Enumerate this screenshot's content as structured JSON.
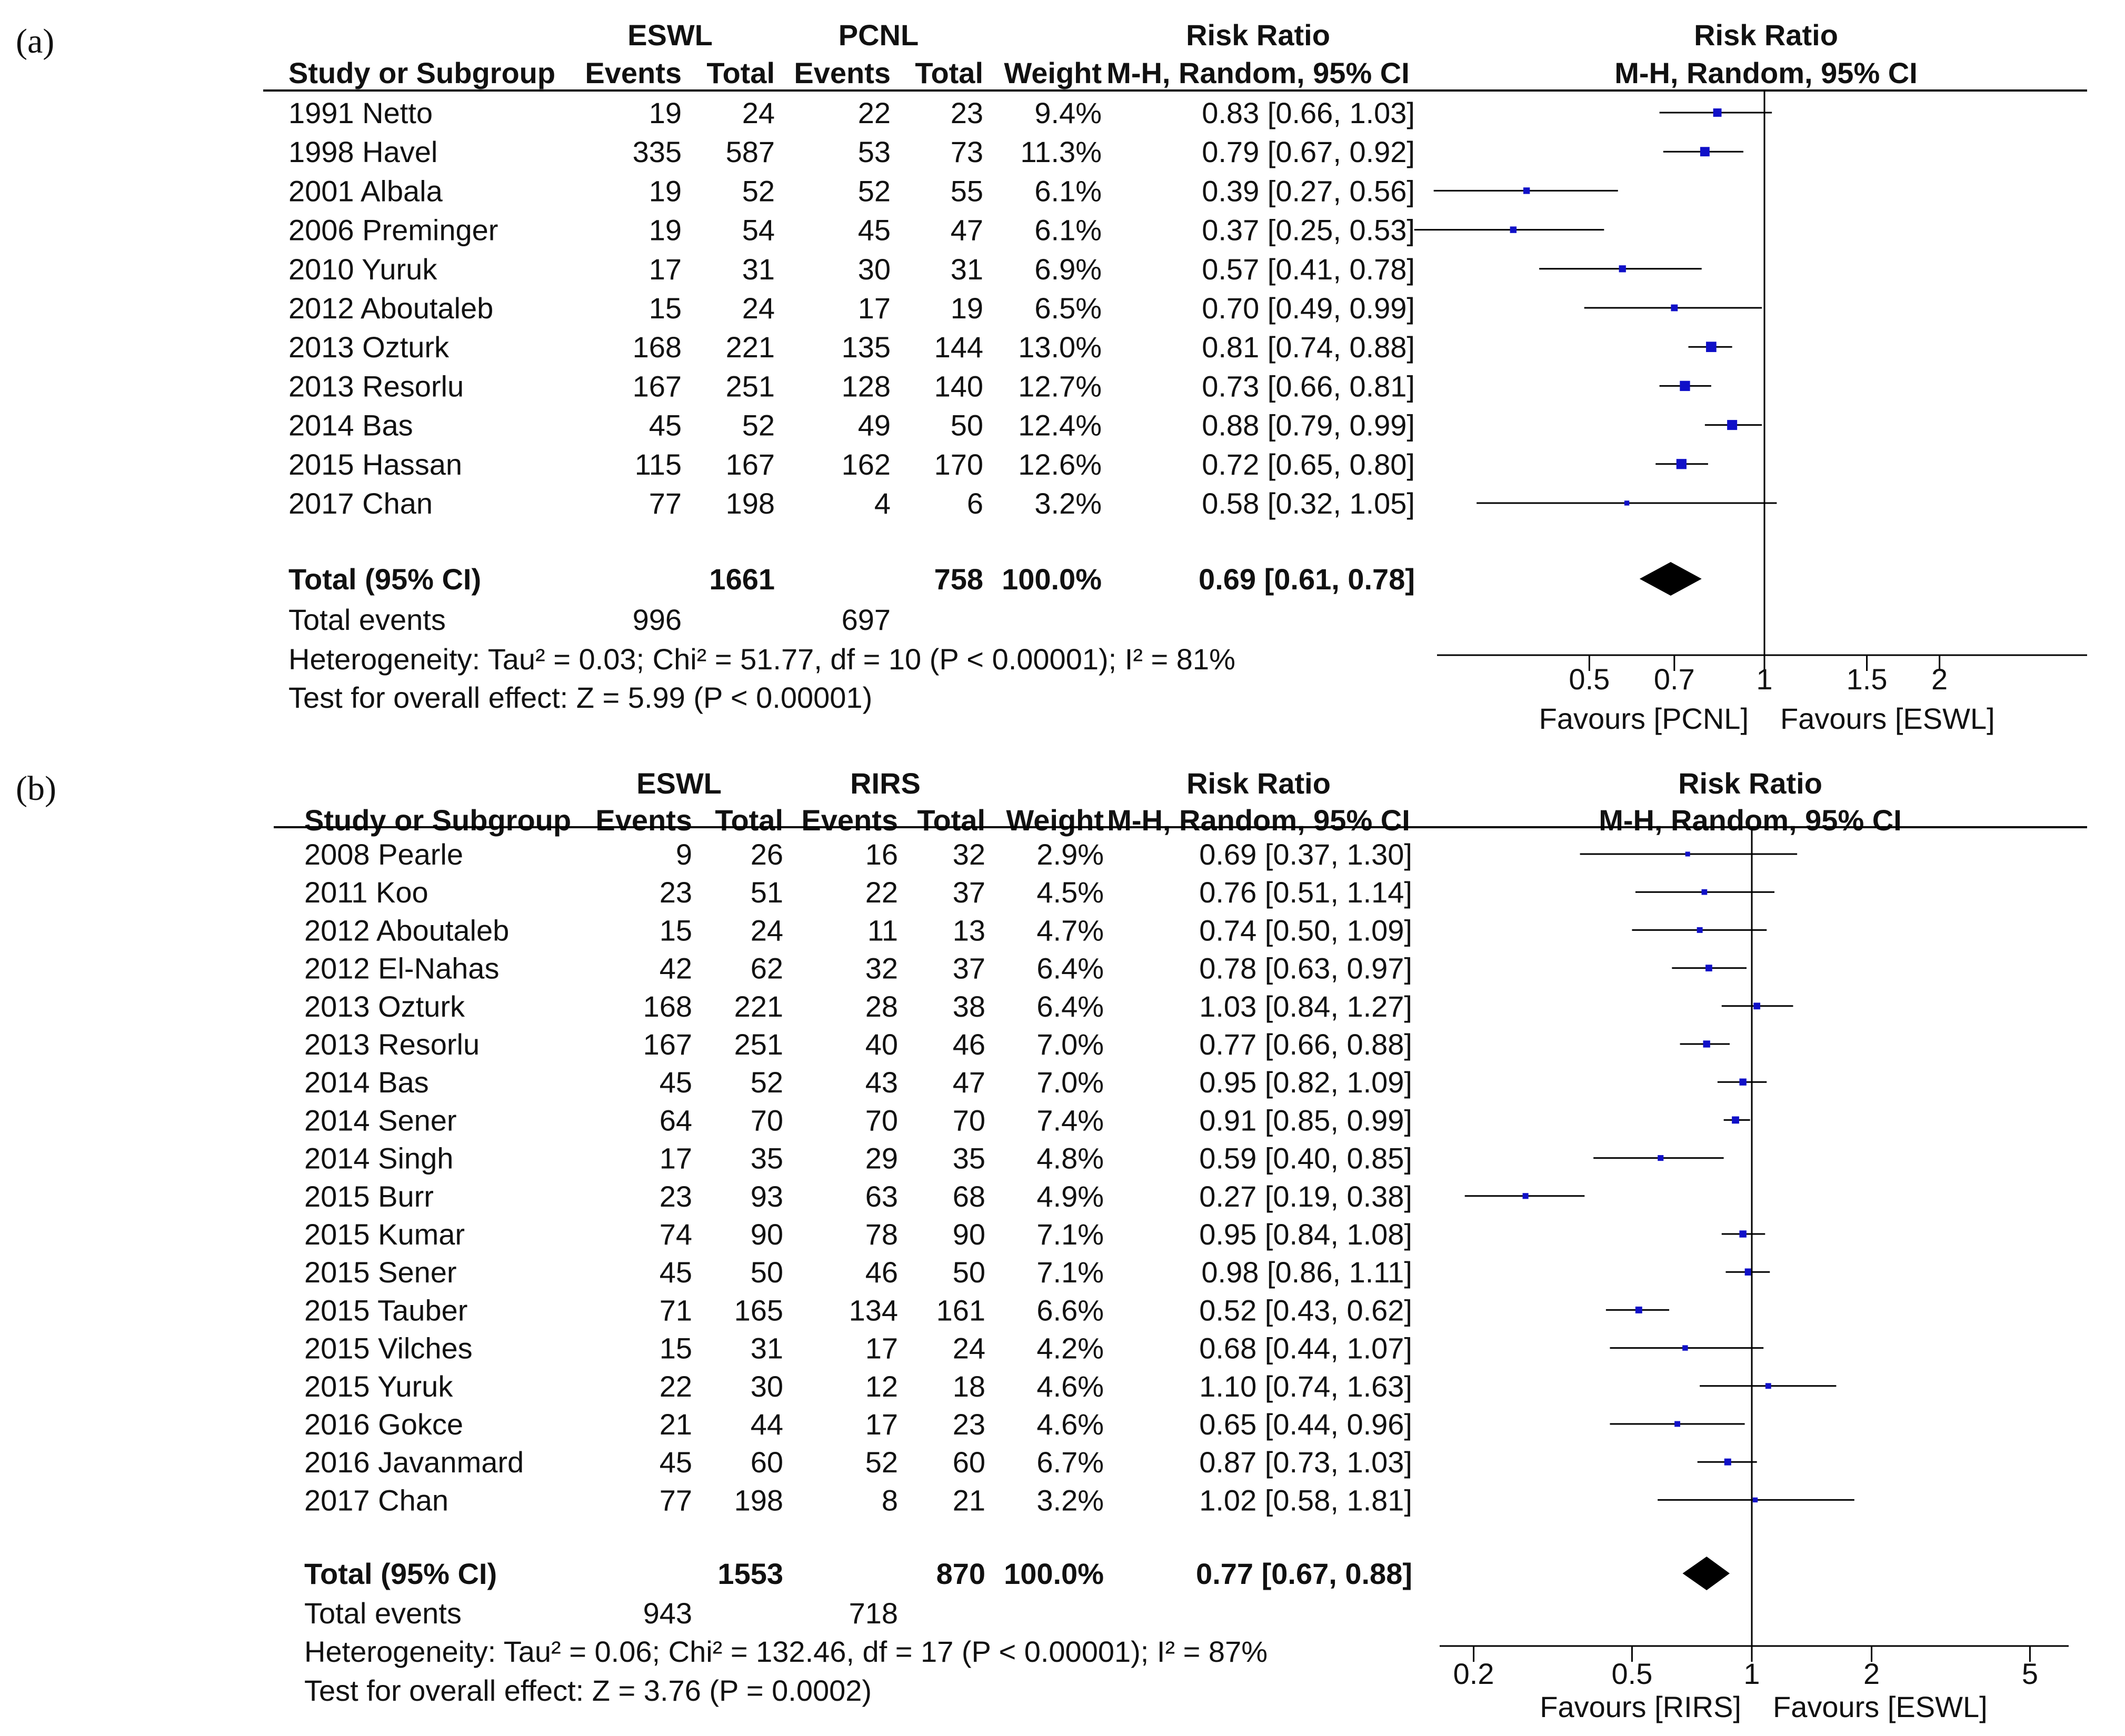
{
  "chart_data": [
    {
      "type": "forest",
      "panel_label": "(a)",
      "headers": {
        "exp_group": "ESWL",
        "ctrl_group": "PCNL",
        "study": "Study or Subgroup",
        "events": "Events",
        "total": "Total",
        "weight": "Weight",
        "rr_title": "Risk Ratio",
        "rr_method": "M-H, Random, 95% CI"
      },
      "studies": [
        {
          "name": "1991 Netto",
          "exp_events": "19",
          "exp_total": "24",
          "ctrl_events": "22",
          "ctrl_total": "23",
          "weight": "9.4%",
          "ci_text": "0.83 [0.66, 1.03]",
          "rr": 0.83,
          "lo": 0.66,
          "hi": 1.03
        },
        {
          "name": "1998 Havel",
          "exp_events": "335",
          "exp_total": "587",
          "ctrl_events": "53",
          "ctrl_total": "73",
          "weight": "11.3%",
          "ci_text": "0.79 [0.67, 0.92]",
          "rr": 0.79,
          "lo": 0.67,
          "hi": 0.92
        },
        {
          "name": "2001 Albala",
          "exp_events": "19",
          "exp_total": "52",
          "ctrl_events": "52",
          "ctrl_total": "55",
          "weight": "6.1%",
          "ci_text": "0.39 [0.27, 0.56]",
          "rr": 0.39,
          "lo": 0.27,
          "hi": 0.56
        },
        {
          "name": "2006 Preminger",
          "exp_events": "19",
          "exp_total": "54",
          "ctrl_events": "45",
          "ctrl_total": "47",
          "weight": "6.1%",
          "ci_text": "0.37 [0.25, 0.53]",
          "rr": 0.37,
          "lo": 0.25,
          "hi": 0.53
        },
        {
          "name": "2010 Yuruk",
          "exp_events": "17",
          "exp_total": "31",
          "ctrl_events": "30",
          "ctrl_total": "31",
          "weight": "6.9%",
          "ci_text": "0.57 [0.41, 0.78]",
          "rr": 0.57,
          "lo": 0.41,
          "hi": 0.78
        },
        {
          "name": "2012 Aboutaleb",
          "exp_events": "15",
          "exp_total": "24",
          "ctrl_events": "17",
          "ctrl_total": "19",
          "weight": "6.5%",
          "ci_text": "0.70 [0.49, 0.99]",
          "rr": 0.7,
          "lo": 0.49,
          "hi": 0.99
        },
        {
          "name": "2013 Ozturk",
          "exp_events": "168",
          "exp_total": "221",
          "ctrl_events": "135",
          "ctrl_total": "144",
          "weight": "13.0%",
          "ci_text": "0.81 [0.74, 0.88]",
          "rr": 0.81,
          "lo": 0.74,
          "hi": 0.88
        },
        {
          "name": "2013 Resorlu",
          "exp_events": "167",
          "exp_total": "251",
          "ctrl_events": "128",
          "ctrl_total": "140",
          "weight": "12.7%",
          "ci_text": "0.73 [0.66, 0.81]",
          "rr": 0.73,
          "lo": 0.66,
          "hi": 0.81
        },
        {
          "name": "2014 Bas",
          "exp_events": "45",
          "exp_total": "52",
          "ctrl_events": "49",
          "ctrl_total": "50",
          "weight": "12.4%",
          "ci_text": "0.88 [0.79, 0.99]",
          "rr": 0.88,
          "lo": 0.79,
          "hi": 0.99
        },
        {
          "name": "2015 Hassan",
          "exp_events": "115",
          "exp_total": "167",
          "ctrl_events": "162",
          "ctrl_total": "170",
          "weight": "12.6%",
          "ci_text": "0.72 [0.65, 0.80]",
          "rr": 0.72,
          "lo": 0.65,
          "hi": 0.8
        },
        {
          "name": "2017 Chan",
          "exp_events": "77",
          "exp_total": "198",
          "ctrl_events": "4",
          "ctrl_total": "6",
          "weight": "3.2%",
          "ci_text": "0.58 [0.32, 1.05]",
          "rr": 0.58,
          "lo": 0.32,
          "hi": 1.05
        }
      ],
      "total": {
        "label": "Total (95% CI)",
        "exp_total": "1661",
        "ctrl_total": "758",
        "weight": "100.0%",
        "ci_text": "0.69 [0.61, 0.78]",
        "rr": 0.69,
        "lo": 0.61,
        "hi": 0.78
      },
      "total_events": {
        "label": "Total events",
        "exp": "996",
        "ctrl": "697"
      },
      "heterogeneity": "Heterogeneity: Tau² = 0.03; Chi² = 51.77, df = 10 (P < 0.00001); I² = 81%",
      "overall_effect": "Test for overall effect: Z = 5.99 (P < 0.00001)",
      "axis": {
        "scale": "log",
        "range": [
          0.2,
          5
        ],
        "ticks": [
          {
            "v": 0.5,
            "label": "0.5"
          },
          {
            "v": 0.7,
            "label": "0.7"
          },
          {
            "v": 1,
            "label": "1"
          },
          {
            "v": 1.5,
            "label": "1.5"
          },
          {
            "v": 2,
            "label": "2"
          }
        ]
      },
      "favours_left": "Favours [PCNL]",
      "favours_right": "Favours [ESWL]"
    },
    {
      "type": "forest",
      "panel_label": "(b)",
      "headers": {
        "exp_group": "ESWL",
        "ctrl_group": "RIRS",
        "study": "Study or Subgroup",
        "events": "Events",
        "total": "Total",
        "weight": "Weight",
        "rr_title": "Risk Ratio",
        "rr_method": "M-H, Random, 95% CI"
      },
      "studies": [
        {
          "name": "2008 Pearle",
          "exp_events": "9",
          "exp_total": "26",
          "ctrl_events": "16",
          "ctrl_total": "32",
          "weight": "2.9%",
          "ci_text": "0.69 [0.37, 1.30]",
          "rr": 0.69,
          "lo": 0.37,
          "hi": 1.3
        },
        {
          "name": "2011 Koo",
          "exp_events": "23",
          "exp_total": "51",
          "ctrl_events": "22",
          "ctrl_total": "37",
          "weight": "4.5%",
          "ci_text": "0.76 [0.51, 1.14]",
          "rr": 0.76,
          "lo": 0.51,
          "hi": 1.14
        },
        {
          "name": "2012 Aboutaleb",
          "exp_events": "15",
          "exp_total": "24",
          "ctrl_events": "11",
          "ctrl_total": "13",
          "weight": "4.7%",
          "ci_text": "0.74 [0.50, 1.09]",
          "rr": 0.74,
          "lo": 0.5,
          "hi": 1.09
        },
        {
          "name": "2012 El-Nahas",
          "exp_events": "42",
          "exp_total": "62",
          "ctrl_events": "32",
          "ctrl_total": "37",
          "weight": "6.4%",
          "ci_text": "0.78 [0.63, 0.97]",
          "rr": 0.78,
          "lo": 0.63,
          "hi": 0.97
        },
        {
          "name": "2013 Ozturk",
          "exp_events": "168",
          "exp_total": "221",
          "ctrl_events": "28",
          "ctrl_total": "38",
          "weight": "6.4%",
          "ci_text": "1.03 [0.84, 1.27]",
          "rr": 1.03,
          "lo": 0.84,
          "hi": 1.27
        },
        {
          "name": "2013 Resorlu",
          "exp_events": "167",
          "exp_total": "251",
          "ctrl_events": "40",
          "ctrl_total": "46",
          "weight": "7.0%",
          "ci_text": "0.77 [0.66, 0.88]",
          "rr": 0.77,
          "lo": 0.66,
          "hi": 0.88
        },
        {
          "name": "2014 Bas",
          "exp_events": "45",
          "exp_total": "52",
          "ctrl_events": "43",
          "ctrl_total": "47",
          "weight": "7.0%",
          "ci_text": "0.95 [0.82, 1.09]",
          "rr": 0.95,
          "lo": 0.82,
          "hi": 1.09
        },
        {
          "name": "2014 Sener",
          "exp_events": "64",
          "exp_total": "70",
          "ctrl_events": "70",
          "ctrl_total": "70",
          "weight": "7.4%",
          "ci_text": "0.91 [0.85, 0.99]",
          "rr": 0.91,
          "lo": 0.85,
          "hi": 0.99
        },
        {
          "name": "2014 Singh",
          "exp_events": "17",
          "exp_total": "35",
          "ctrl_events": "29",
          "ctrl_total": "35",
          "weight": "4.8%",
          "ci_text": "0.59 [0.40, 0.85]",
          "rr": 0.59,
          "lo": 0.4,
          "hi": 0.85
        },
        {
          "name": "2015 Burr",
          "exp_events": "23",
          "exp_total": "93",
          "ctrl_events": "63",
          "ctrl_total": "68",
          "weight": "4.9%",
          "ci_text": "0.27 [0.19, 0.38]",
          "rr": 0.27,
          "lo": 0.19,
          "hi": 0.38
        },
        {
          "name": "2015 Kumar",
          "exp_events": "74",
          "exp_total": "90",
          "ctrl_events": "78",
          "ctrl_total": "90",
          "weight": "7.1%",
          "ci_text": "0.95 [0.84, 1.08]",
          "rr": 0.95,
          "lo": 0.84,
          "hi": 1.08
        },
        {
          "name": "2015 Sener",
          "exp_events": "45",
          "exp_total": "50",
          "ctrl_events": "46",
          "ctrl_total": "50",
          "weight": "7.1%",
          "ci_text": "0.98 [0.86, 1.11]",
          "rr": 0.98,
          "lo": 0.86,
          "hi": 1.11
        },
        {
          "name": "2015 Tauber",
          "exp_events": "71",
          "exp_total": "165",
          "ctrl_events": "134",
          "ctrl_total": "161",
          "weight": "6.6%",
          "ci_text": "0.52 [0.43, 0.62]",
          "rr": 0.52,
          "lo": 0.43,
          "hi": 0.62
        },
        {
          "name": "2015 Vilches",
          "exp_events": "15",
          "exp_total": "31",
          "ctrl_events": "17",
          "ctrl_total": "24",
          "weight": "4.2%",
          "ci_text": "0.68 [0.44, 1.07]",
          "rr": 0.68,
          "lo": 0.44,
          "hi": 1.07
        },
        {
          "name": "2015 Yuruk",
          "exp_events": "22",
          "exp_total": "30",
          "ctrl_events": "12",
          "ctrl_total": "18",
          "weight": "4.6%",
          "ci_text": "1.10 [0.74, 1.63]",
          "rr": 1.1,
          "lo": 0.74,
          "hi": 1.63
        },
        {
          "name": "2016 Gokce",
          "exp_events": "21",
          "exp_total": "44",
          "ctrl_events": "17",
          "ctrl_total": "23",
          "weight": "4.6%",
          "ci_text": "0.65 [0.44, 0.96]",
          "rr": 0.65,
          "lo": 0.44,
          "hi": 0.96
        },
        {
          "name": "2016 Javanmard",
          "exp_events": "45",
          "exp_total": "60",
          "ctrl_events": "52",
          "ctrl_total": "60",
          "weight": "6.7%",
          "ci_text": "0.87 [0.73, 1.03]",
          "rr": 0.87,
          "lo": 0.73,
          "hi": 1.03
        },
        {
          "name": "2017 Chan",
          "exp_events": "77",
          "exp_total": "198",
          "ctrl_events": "8",
          "ctrl_total": "21",
          "weight": "3.2%",
          "ci_text": "1.02 [0.58, 1.81]",
          "rr": 1.02,
          "lo": 0.58,
          "hi": 1.81
        }
      ],
      "total": {
        "label": "Total (95% CI)",
        "exp_total": "1553",
        "ctrl_total": "870",
        "weight": "100.0%",
        "ci_text": "0.77 [0.67, 0.88]",
        "rr": 0.77,
        "lo": 0.67,
        "hi": 0.88
      },
      "total_events": {
        "label": "Total events",
        "exp": "943",
        "ctrl": "718"
      },
      "heterogeneity": "Heterogeneity: Tau² = 0.06; Chi² = 132.46, df = 17 (P < 0.00001); I² = 87%",
      "overall_effect": "Test for overall effect: Z = 3.76 (P = 0.0002)",
      "axis": {
        "scale": "log",
        "range": [
          0.15,
          7
        ],
        "ticks": [
          {
            "v": 0.2,
            "label": "0.2"
          },
          {
            "v": 0.5,
            "label": "0.5"
          },
          {
            "v": 1,
            "label": "1"
          },
          {
            "v": 2,
            "label": "2"
          },
          {
            "v": 5,
            "label": "5"
          }
        ]
      },
      "favours_left": "Favours [RIRS]",
      "favours_right": "Favours [ESWL]"
    }
  ],
  "colors": {
    "text": "#111111",
    "marker": "#1010c8",
    "line": "#000000"
  }
}
